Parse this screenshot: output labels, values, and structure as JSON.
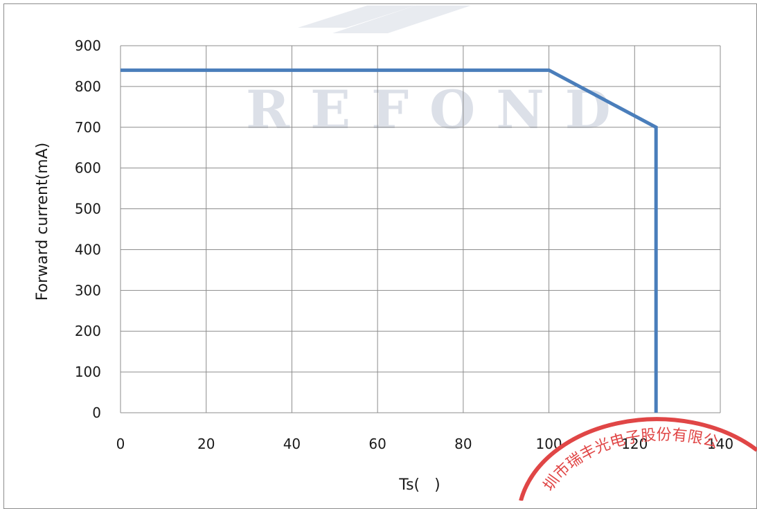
{
  "chart_data": {
    "type": "line",
    "xlabel": "Ts(   )",
    "ylabel": "Forward current(mA)",
    "xlim": [
      0,
      140
    ],
    "ylim": [
      0,
      900
    ],
    "x_ticks": [
      0,
      20,
      40,
      60,
      80,
      100,
      120,
      140
    ],
    "y_ticks": [
      0,
      100,
      200,
      300,
      400,
      500,
      600,
      700,
      800,
      900
    ],
    "grid": true,
    "series": [
      {
        "x": [
          0,
          100,
          125,
          125
        ],
        "y": [
          840,
          840,
          700,
          0
        ],
        "color": "#4a7ebb"
      }
    ]
  },
  "watermark": {
    "text": "REFOND",
    "color": "#d9dde6"
  },
  "seal": {
    "text": "圳市瑞丰光电子股份有限公",
    "color": "#e04646"
  }
}
